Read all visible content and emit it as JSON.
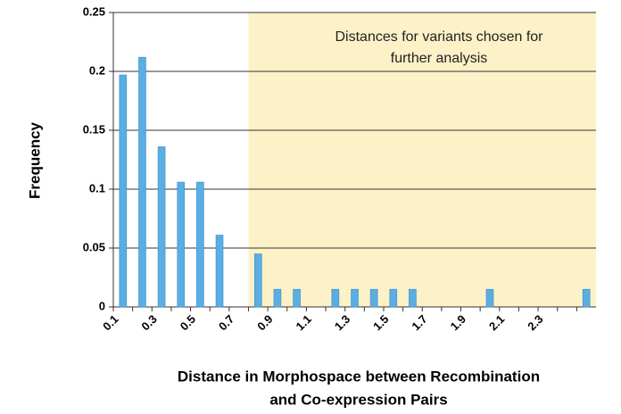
{
  "chart_data": {
    "type": "bar",
    "annotation": [
      "Distances for variants chosen for",
      "further analysis"
    ],
    "x_label": [
      "Distance in Morphospace between Recombination",
      "and Co-expression Pairs"
    ],
    "y_label": "Frequency",
    "categories": [
      "0.1",
      null,
      "0.3",
      null,
      "0.5",
      null,
      "0.7",
      null,
      "0.9",
      null,
      "1.1",
      null,
      "1.3",
      null,
      "1.5",
      null,
      "1.7",
      null,
      "1.9",
      null,
      "2.1",
      null,
      "2.3",
      null,
      null
    ],
    "values": [
      0.197,
      0.212,
      0.136,
      0.106,
      0.106,
      0.061,
      0,
      0.045,
      0.015,
      0.015,
      0,
      0.015,
      0.015,
      0.015,
      0.015,
      0.015,
      0,
      0,
      0,
      0.015,
      0,
      0,
      0,
      0,
      0.015
    ],
    "color": "#5aaee3",
    "ylim": [
      0,
      0.25
    ],
    "yticks": [
      0,
      0.05,
      0.1,
      0.15,
      0.2,
      0.25
    ],
    "grid": true
  }
}
